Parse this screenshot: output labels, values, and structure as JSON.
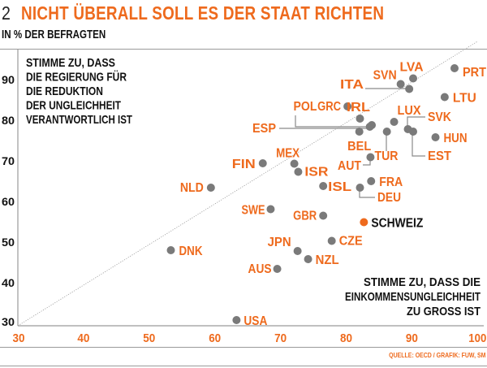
{
  "header": {
    "number": "2",
    "title": "NICHT ÜBERALL SOLL ES DER STAAT RICHTEN",
    "subtitle": "IN % DER  BEFRAGTEN"
  },
  "footer": {
    "source": "QUELLE:  OECD / GRAFIK: FUW, SM"
  },
  "colors": {
    "accent": "#ee6a1d",
    "dot": "#7a7a7a",
    "highlight_dot": "#ee6a1d",
    "text_dark": "#111111",
    "axis": "#9a9a9a"
  },
  "chart_data": {
    "type": "scatter",
    "title": "NICHT ÜBERALL SOLL ES DER STAAT RICHTEN",
    "subtitle": "IN % DER  BEFRAGTEN",
    "xlabel": "STIMME ZU, DASS DIE EINKOMMENSUNGLEICHHEIT ZU GROSS IST",
    "ylabel": "STIMME ZU, DASS DIE REGIERUNG FÜR DIE REDUKTION DER UNGLEICHHEIT VERANTWORTLICH IST",
    "xlabel_lines": [
      "STIMME ZU, DASS DIE",
      "EINKOMMENSUNGLEICHHEIT",
      "ZU GROSS IST"
    ],
    "ylabel_lines": [
      "STIMME ZU, DASS",
      "DIE REGIERUNG FÜR",
      "DIE REDUKTION",
      "DER UNGLEICHHEIT",
      "VERANTWORTLICH IST"
    ],
    "xlim": [
      30,
      100
    ],
    "ylim": [
      30,
      100
    ],
    "xticks": [
      30,
      40,
      50,
      60,
      70,
      80,
      90,
      100
    ],
    "yticks": [
      30,
      40,
      50,
      60,
      70,
      80,
      90
    ],
    "reference_line": "diagonal y = x (dotted)",
    "grid": false,
    "points": [
      {
        "label": "PRT",
        "x": 96.5,
        "y": 93.4
      },
      {
        "label": "LVA",
        "x": 90.2,
        "y": 90.9
      },
      {
        "label": "SVN",
        "x": 88.3,
        "y": 89.5
      },
      {
        "label": "ITA",
        "x": 89.6,
        "y": 88.3
      },
      {
        "label": "LTU",
        "x": 95.0,
        "y": 86.3
      },
      {
        "label": "GRC",
        "x": 80.2,
        "y": 84.0
      },
      {
        "label": "IRL",
        "x": 82.1,
        "y": 81.0
      },
      {
        "label": "LUX",
        "x": 87.3,
        "y": 80.2
      },
      {
        "label": "POL",
        "x": 83.9,
        "y": 79.4
      },
      {
        "label": "ESP",
        "x": 83.6,
        "y": 79.0
      },
      {
        "label": "BEL",
        "x": 82.0,
        "y": 77.8
      },
      {
        "label": "TUR",
        "x": 86.2,
        "y": 77.8
      },
      {
        "label": "SVK",
        "x": 89.4,
        "y": 78.4
      },
      {
        "label": "EST",
        "x": 90.2,
        "y": 77.8
      },
      {
        "label": "HUN",
        "x": 93.6,
        "y": 76.4
      },
      {
        "label": "AUT",
        "x": 83.7,
        "y": 71.5
      },
      {
        "label": "FIN",
        "x": 67.3,
        "y": 70.0
      },
      {
        "label": "MEX",
        "x": 72.1,
        "y": 69.9
      },
      {
        "label": "ISR",
        "x": 72.7,
        "y": 67.9
      },
      {
        "label": "FRA",
        "x": 83.8,
        "y": 65.6
      },
      {
        "label": "ISL",
        "x": 76.5,
        "y": 64.4
      },
      {
        "label": "NLD",
        "x": 59.4,
        "y": 64.0
      },
      {
        "label": "DEU",
        "x": 82.1,
        "y": 64.0
      },
      {
        "label": "SWE",
        "x": 68.5,
        "y": 58.7
      },
      {
        "label": "GBR",
        "x": 76.5,
        "y": 57.1
      },
      {
        "label": "SCHWEIZ",
        "x": 82.7,
        "y": 55.5,
        "highlight": true
      },
      {
        "label": "CZE",
        "x": 77.8,
        "y": 50.9
      },
      {
        "label": "DNK",
        "x": 53.3,
        "y": 48.6
      },
      {
        "label": "JPN",
        "x": 72.6,
        "y": 48.4
      },
      {
        "label": "NZL",
        "x": 74.2,
        "y": 46.4
      },
      {
        "label": "AUS",
        "x": 69.5,
        "y": 44.0
      },
      {
        "label": "USA",
        "x": 63.3,
        "y": 31.4
      }
    ]
  }
}
